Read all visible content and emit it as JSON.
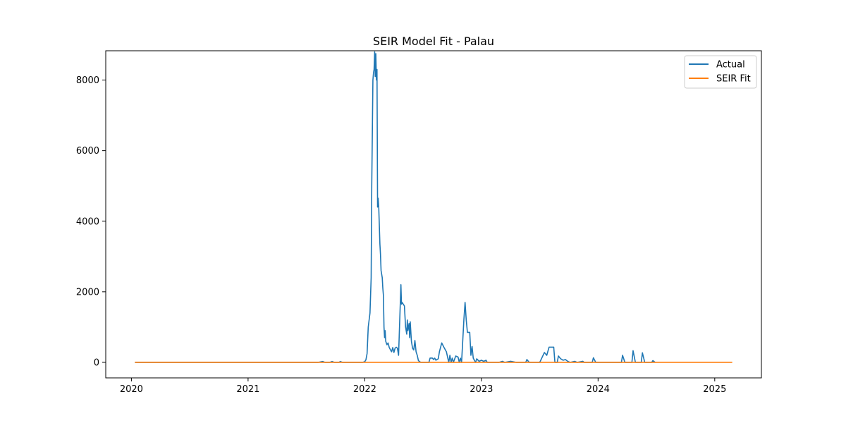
{
  "chart_data": {
    "type": "line",
    "title": "SEIR Model Fit - Palau",
    "xlabel": "",
    "ylabel": "",
    "x_ticks": [
      "2020",
      "2021",
      "2022",
      "2023",
      "2024",
      "2025"
    ],
    "y_ticks": [
      "0",
      "2000",
      "4000",
      "6000",
      "8000"
    ],
    "xlim": [
      2019.78,
      2025.4
    ],
    "ylim": [
      -440,
      8830
    ],
    "grid": false,
    "legend": "top-right",
    "colors": {
      "actual": "#1f77b4",
      "fit": "#ff7f0e"
    },
    "series": [
      {
        "name": "Actual",
        "points": [
          [
            2020.03,
            0
          ],
          [
            2021.6,
            0
          ],
          [
            2021.64,
            25
          ],
          [
            2021.66,
            0
          ],
          [
            2021.7,
            0
          ],
          [
            2021.72,
            25
          ],
          [
            2021.74,
            0
          ],
          [
            2021.78,
            0
          ],
          [
            2021.79,
            25
          ],
          [
            2021.81,
            0
          ],
          [
            2021.98,
            0
          ],
          [
            2022.0,
            20
          ],
          [
            2022.01,
            70
          ],
          [
            2022.02,
            250
          ],
          [
            2022.03,
            1000
          ],
          [
            2022.045,
            1400
          ],
          [
            2022.055,
            2400
          ],
          [
            2022.06,
            5000
          ],
          [
            2022.07,
            8000
          ],
          [
            2022.075,
            8200
          ],
          [
            2022.08,
            8300
          ],
          [
            2022.085,
            8800
          ],
          [
            2022.09,
            8100
          ],
          [
            2022.095,
            8750
          ],
          [
            2022.1,
            8000
          ],
          [
            2022.105,
            8300
          ],
          [
            2022.11,
            4400
          ],
          [
            2022.115,
            4650
          ],
          [
            2022.12,
            4400
          ],
          [
            2022.13,
            3350
          ],
          [
            2022.135,
            3050
          ],
          [
            2022.14,
            2600
          ],
          [
            2022.15,
            2400
          ],
          [
            2022.155,
            2100
          ],
          [
            2022.16,
            1900
          ],
          [
            2022.165,
            1000
          ],
          [
            2022.17,
            700
          ],
          [
            2022.175,
            900
          ],
          [
            2022.18,
            600
          ],
          [
            2022.19,
            500
          ],
          [
            2022.2,
            550
          ],
          [
            2022.21,
            420
          ],
          [
            2022.22,
            360
          ],
          [
            2022.23,
            300
          ],
          [
            2022.24,
            420
          ],
          [
            2022.25,
            280
          ],
          [
            2022.26,
            400
          ],
          [
            2022.27,
            430
          ],
          [
            2022.28,
            400
          ],
          [
            2022.29,
            200
          ],
          [
            2022.3,
            1200
          ],
          [
            2022.31,
            2200
          ],
          [
            2022.315,
            1650
          ],
          [
            2022.32,
            1700
          ],
          [
            2022.33,
            1650
          ],
          [
            2022.34,
            1600
          ],
          [
            2022.35,
            1000
          ],
          [
            2022.36,
            800
          ],
          [
            2022.365,
            1200
          ],
          [
            2022.37,
            900
          ],
          [
            2022.38,
            1100
          ],
          [
            2022.385,
            700
          ],
          [
            2022.39,
            1150
          ],
          [
            2022.4,
            600
          ],
          [
            2022.41,
            400
          ],
          [
            2022.42,
            350
          ],
          [
            2022.43,
            620
          ],
          [
            2022.44,
            300
          ],
          [
            2022.45,
            200
          ],
          [
            2022.46,
            50
          ],
          [
            2022.48,
            0
          ],
          [
            2022.55,
            0
          ],
          [
            2022.56,
            120
          ],
          [
            2022.58,
            120
          ],
          [
            2022.59,
            80
          ],
          [
            2022.6,
            120
          ],
          [
            2022.61,
            60
          ],
          [
            2022.63,
            100
          ],
          [
            2022.64,
            300
          ],
          [
            2022.66,
            550
          ],
          [
            2022.68,
            420
          ],
          [
            2022.7,
            300
          ],
          [
            2022.72,
            0
          ],
          [
            2022.73,
            200
          ],
          [
            2022.74,
            0
          ],
          [
            2022.75,
            120
          ],
          [
            2022.76,
            0
          ],
          [
            2022.78,
            180
          ],
          [
            2022.8,
            150
          ],
          [
            2022.81,
            0
          ],
          [
            2022.82,
            120
          ],
          [
            2022.83,
            0
          ],
          [
            2022.85,
            1220
          ],
          [
            2022.86,
            1700
          ],
          [
            2022.87,
            1200
          ],
          [
            2022.88,
            850
          ],
          [
            2022.9,
            850
          ],
          [
            2022.91,
            200
          ],
          [
            2022.92,
            450
          ],
          [
            2022.93,
            120
          ],
          [
            2022.95,
            0
          ],
          [
            2022.96,
            100
          ],
          [
            2022.98,
            30
          ],
          [
            2023.0,
            60
          ],
          [
            2023.02,
            30
          ],
          [
            2023.04,
            60
          ],
          [
            2023.05,
            0
          ],
          [
            2023.15,
            0
          ],
          [
            2023.18,
            30
          ],
          [
            2023.2,
            0
          ],
          [
            2023.25,
            30
          ],
          [
            2023.3,
            0
          ],
          [
            2023.38,
            0
          ],
          [
            2023.39,
            80
          ],
          [
            2023.41,
            0
          ],
          [
            2023.5,
            0
          ],
          [
            2023.54,
            280
          ],
          [
            2023.56,
            200
          ],
          [
            2023.58,
            430
          ],
          [
            2023.62,
            430
          ],
          [
            2023.63,
            0
          ],
          [
            2023.65,
            0
          ],
          [
            2023.66,
            180
          ],
          [
            2023.68,
            100
          ],
          [
            2023.7,
            60
          ],
          [
            2023.72,
            80
          ],
          [
            2023.74,
            30
          ],
          [
            2023.76,
            0
          ],
          [
            2023.8,
            30
          ],
          [
            2023.82,
            0
          ],
          [
            2023.87,
            30
          ],
          [
            2023.88,
            0
          ],
          [
            2023.95,
            0
          ],
          [
            2023.96,
            130
          ],
          [
            2023.98,
            0
          ],
          [
            2024.2,
            0
          ],
          [
            2024.21,
            200
          ],
          [
            2024.23,
            0
          ],
          [
            2024.29,
            0
          ],
          [
            2024.3,
            330
          ],
          [
            2024.32,
            0
          ],
          [
            2024.37,
            0
          ],
          [
            2024.38,
            270
          ],
          [
            2024.4,
            0
          ],
          [
            2024.46,
            0
          ],
          [
            2024.47,
            50
          ],
          [
            2024.49,
            0
          ]
        ]
      },
      {
        "name": "SEIR Fit",
        "points": [
          [
            2020.03,
            0
          ],
          [
            2025.15,
            0
          ]
        ]
      }
    ]
  }
}
